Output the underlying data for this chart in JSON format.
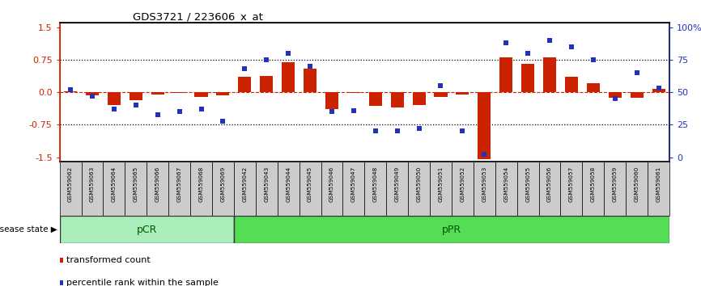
{
  "title": "GDS3721 / 223606_x_at",
  "samples": [
    "GSM559062",
    "GSM559063",
    "GSM559064",
    "GSM559065",
    "GSM559066",
    "GSM559067",
    "GSM559068",
    "GSM559069",
    "GSM559042",
    "GSM559043",
    "GSM559044",
    "GSM559045",
    "GSM559046",
    "GSM559047",
    "GSM559048",
    "GSM559049",
    "GSM559050",
    "GSM559051",
    "GSM559052",
    "GSM559053",
    "GSM559054",
    "GSM559055",
    "GSM559056",
    "GSM559057",
    "GSM559058",
    "GSM559059",
    "GSM559060",
    "GSM559061"
  ],
  "transformed_count": [
    0.02,
    -0.08,
    -0.3,
    -0.18,
    -0.05,
    -0.02,
    -0.1,
    -0.08,
    0.35,
    0.37,
    0.7,
    0.55,
    -0.38,
    -0.02,
    -0.32,
    -0.35,
    -0.3,
    -0.1,
    -0.05,
    -1.55,
    0.8,
    0.65,
    0.8,
    0.35,
    0.2,
    -0.12,
    -0.12,
    0.08
  ],
  "percentile_rank": [
    52,
    47,
    37,
    40,
    33,
    35,
    37,
    28,
    68,
    75,
    80,
    70,
    35,
    36,
    20,
    20,
    22,
    55,
    20,
    2,
    88,
    80,
    90,
    85,
    75,
    45,
    65,
    53
  ],
  "pcr_count": 8,
  "ppr_count": 20,
  "ylim": [
    -1.6,
    1.6
  ],
  "yticks_left": [
    -1.5,
    -0.75,
    0.0,
    0.75,
    1.5
  ],
  "yticks_right": [
    0,
    25,
    50,
    75,
    100
  ],
  "bar_color": "#CC2200",
  "dot_color": "#2233BB",
  "pcr_color": "#AAEEBB",
  "ppr_color": "#55DD55",
  "label_bg_color": "#CCCCCC",
  "hline_color": "#CC2200",
  "dotted_color": "#000000",
  "fig_width": 8.66,
  "fig_height": 3.54,
  "dpi": 100
}
